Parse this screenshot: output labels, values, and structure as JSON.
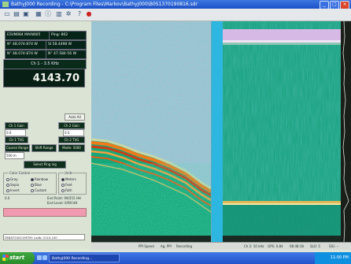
{
  "window": {
    "title": "BathyJ000 Recording - C:\\Program Files\\Markov\\BathyJ000\\B0S1370190816.sdr"
  },
  "lcd": {
    "row1_left": "ESVN984 MAIN005",
    "row1_right": "Ping: 862",
    "row2_left": "N° 48.074-874 W",
    "row2_right": "SI 58.4498 W",
    "row3_left": "N° 48.074-874 W",
    "row3_right": "N° 47.584-56 W",
    "channel_label": "Ch 1 - 3.5 KHz",
    "depth_value": "4143.70"
  },
  "controls": {
    "ch1_gain": "Ch 1 Gain",
    "ch1_gain_value": "0.0",
    "ch1_tvg": "Ch 1 TVG",
    "ch2_gain": "Ch 2 Gain",
    "ch2_gain_value": "0.0",
    "ch2_tvg": "Ch 2 TVG",
    "auto_btn": "Auto All",
    "coarse_range": "Coarse Range",
    "shift_range": "Shift Range",
    "range_value": "Mode: 5000",
    "range_field": "500 m",
    "select_ping": "Select Ping ing"
  },
  "color_control": {
    "title": "Color Control",
    "options": [
      "Gray",
      "Rainbow",
      "Sepia",
      "Blue",
      "Invert",
      "Custom"
    ],
    "selected": "Rainbow"
  },
  "units": {
    "title": "Units",
    "options": [
      "Meters",
      "Feet",
      "Fath"
    ],
    "selected": "Meters"
  },
  "threshold": {
    "max_label": "End Point: 99/255 HH",
    "min_label": "End Level: 0/99 HH",
    "low_label": "0.0"
  },
  "file_path": "DMJ87200219STM: Lsdb: 0110.100",
  "status_bar": {
    "ping_speed": "PPI Speed",
    "ping_rate": "Ag. PPI",
    "recording": "Recording",
    "ch2_label": "Ch 2: 10 kHz",
    "gps": "GPS: 0.84",
    "time": "08:48:18",
    "sog": "SLO: 5",
    "sig": "SIG: --"
  },
  "taskbar": {
    "start_label": "start",
    "task_item": "BathyJ000 Recording...",
    "clock": "11:00 PM"
  },
  "colors": {
    "lcd_bg": "#062418",
    "divider": "#2db6e0",
    "seafloor": "#e46a1a",
    "taskbar": "#2353c9",
    "start_green": "#2a8a2a"
  },
  "icons": [
    "new-icon",
    "open-icon",
    "save-icon",
    "print-icon",
    "info-icon",
    "chart-icon",
    "gear-icon",
    "help-icon",
    "record-icon"
  ]
}
